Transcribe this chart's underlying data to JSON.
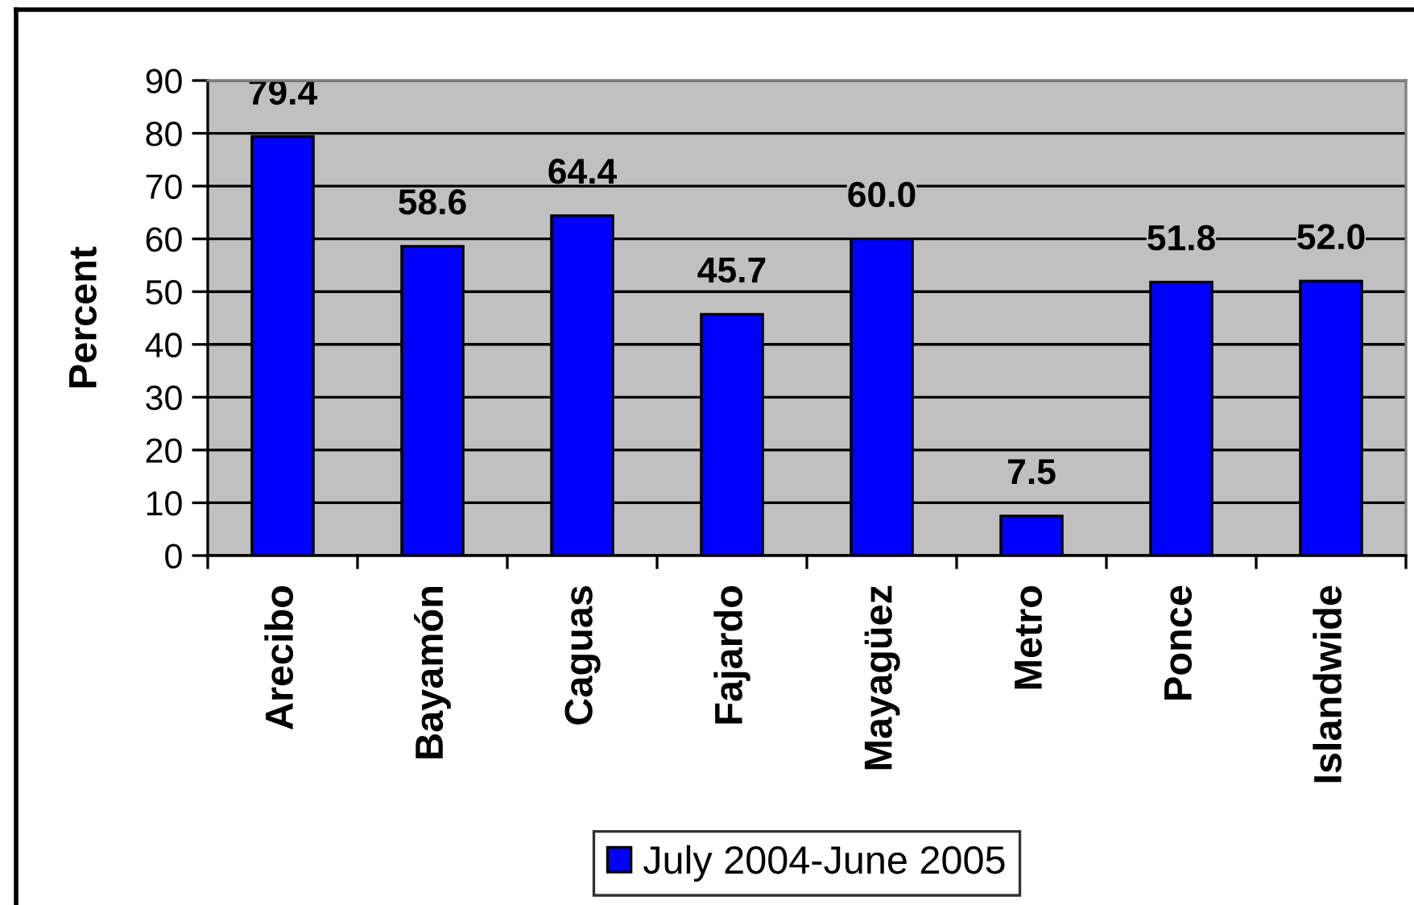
{
  "chart_data": {
    "type": "bar",
    "categories": [
      "Arecibo",
      "Bayamón",
      "Caguas",
      "Fajardo",
      "Mayagüez",
      "Metro",
      "Ponce",
      "Islandwide"
    ],
    "series": [
      {
        "name": "July 2004-June 2005",
        "color": "#0000ff",
        "values": [
          79.4,
          58.6,
          64.4,
          45.7,
          60.0,
          7.5,
          51.8,
          52.0
        ],
        "value_labels": [
          "79.4",
          "58.6",
          "64.4",
          "45.7",
          "60.0",
          "7.5",
          "51.8",
          "52.0"
        ]
      }
    ],
    "ylabel": "Percent",
    "ylim": [
      0,
      90
    ],
    "yticks": [
      0,
      10,
      20,
      30,
      40,
      50,
      60,
      70,
      80,
      90
    ],
    "grid": "y",
    "legend": "bottom"
  }
}
